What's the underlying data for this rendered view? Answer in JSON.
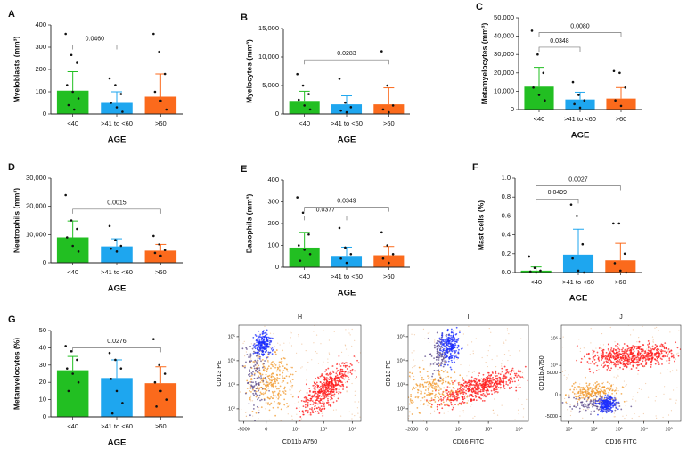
{
  "chart_data": [
    {
      "type": "bar",
      "panel": "A",
      "ylabel": "Myeloblasts (mm³)",
      "xlabel": "AGE",
      "categories": [
        "<40",
        ">41 to <60",
        ">60"
      ],
      "colors": [
        "#22bf22",
        "#1ea6ef",
        "#fb6a1c"
      ],
      "values": [
        105,
        50,
        78
      ],
      "errors": [
        85,
        50,
        102
      ],
      "points": [
        [
          360,
          265,
          230,
          130,
          100,
          70,
          40,
          20
        ],
        [
          160,
          130,
          90,
          50,
          30,
          10
        ],
        [
          360,
          280,
          180,
          100,
          60,
          20
        ]
      ],
      "ylim": [
        0,
        400
      ],
      "yticks": [
        0,
        100,
        200,
        300,
        400
      ],
      "comparisons": [
        {
          "from": 0,
          "to": 1,
          "y": 310,
          "label": "0.0460"
        }
      ]
    },
    {
      "type": "bar",
      "panel": "B",
      "ylabel": "Myelocytes (mm³)",
      "xlabel": "AGE",
      "categories": [
        "<40",
        ">41 to <60",
        ">60"
      ],
      "colors": [
        "#22bf22",
        "#1ea6ef",
        "#fb6a1c"
      ],
      "values": [
        2300,
        1700,
        1700
      ],
      "errors": [
        1700,
        1500,
        2900
      ],
      "points": [
        [
          7000,
          5000,
          3500,
          2500,
          1500,
          800
        ],
        [
          6200,
          2000,
          1200,
          600,
          300
        ],
        [
          11000,
          5000,
          1500,
          800,
          300
        ]
      ],
      "ylim": [
        0,
        15000
      ],
      "yticks": [
        0,
        {
          "value": 5000,
          "label": "5,000"
        },
        {
          "value": 10000,
          "label": "10,000"
        },
        {
          "value": 15000,
          "label": "15,000"
        }
      ],
      "comparisons": [
        {
          "from": 0,
          "to": 2,
          "y": 9500,
          "label": "0.0283"
        }
      ]
    },
    {
      "type": "bar",
      "panel": "C",
      "ylabel": "Metamyelocytes (mm³)",
      "xlabel": "AGE",
      "categories": [
        "<40",
        ">41 to <60",
        ">60"
      ],
      "colors": [
        "#22bf22",
        "#1ea6ef",
        "#fb6a1c"
      ],
      "values": [
        12500,
        5500,
        6000
      ],
      "errors": [
        10500,
        4000,
        6000
      ],
      "points": [
        [
          43000,
          30000,
          20000,
          12000,
          8000,
          5000
        ],
        [
          15000,
          8000,
          5000,
          3000,
          1000
        ],
        [
          21000,
          20000,
          12000,
          5000,
          2000
        ]
      ],
      "ylim": [
        0,
        50000
      ],
      "yticks": [
        0,
        {
          "value": 10000,
          "label": "10,000"
        },
        {
          "value": 20000,
          "label": "20,000"
        },
        {
          "value": 30000,
          "label": "30,000"
        },
        {
          "value": 40000,
          "label": "40,000"
        },
        {
          "value": 50000,
          "label": "50,000"
        }
      ],
      "comparisons": [
        {
          "from": 0,
          "to": 1,
          "y": 34000,
          "label": "0.0348"
        },
        {
          "from": 0,
          "to": 2,
          "y": 42000,
          "label": "0.0080"
        }
      ]
    },
    {
      "type": "bar",
      "panel": "D",
      "ylabel": "Neutrophils (mm³)",
      "xlabel": "AGE",
      "categories": [
        "<40",
        ">41 to <60",
        ">60"
      ],
      "colors": [
        "#22bf22",
        "#1ea6ef",
        "#fb6a1c"
      ],
      "values": [
        9000,
        5800,
        4300
      ],
      "errors": [
        5800,
        2700,
        2200
      ],
      "points": [
        [
          24000,
          15000,
          12000,
          9000,
          6000,
          4000
        ],
        [
          13000,
          8000,
          6000,
          5000,
          4000
        ],
        [
          9500,
          6500,
          4500,
          3500,
          2500
        ]
      ],
      "ylim": [
        0,
        30000
      ],
      "yticks": [
        0,
        {
          "value": 10000,
          "label": "10,000"
        },
        {
          "value": 20000,
          "label": "20,000"
        },
        {
          "value": 30000,
          "label": "30,000"
        }
      ],
      "comparisons": [
        {
          "from": 0,
          "to": 2,
          "y": 19000,
          "label": "0.0015"
        }
      ]
    },
    {
      "type": "bar",
      "panel": "E",
      "ylabel": "Basophils (mm³)",
      "xlabel": "AGE",
      "categories": [
        "<40",
        ">41 to <60",
        ">60"
      ],
      "colors": [
        "#22bf22",
        "#1ea6ef",
        "#fb6a1c"
      ],
      "values": [
        90,
        52,
        55
      ],
      "errors": [
        70,
        40,
        40
      ],
      "points": [
        [
          320,
          250,
          150,
          100,
          80,
          60,
          30
        ],
        [
          180,
          90,
          60,
          40,
          20
        ],
        [
          160,
          100,
          60,
          40,
          20
        ]
      ],
      "ylim": [
        0,
        400
      ],
      "yticks": [
        0,
        100,
        200,
        300,
        400
      ],
      "comparisons": [
        {
          "from": 0,
          "to": 1,
          "y": 235,
          "label": "0.0377"
        },
        {
          "from": 0,
          "to": 2,
          "y": 275,
          "label": "0.0349"
        }
      ]
    },
    {
      "type": "bar",
      "panel": "F",
      "ylabel": "Mast cells (%)",
      "xlabel": "AGE",
      "categories": [
        "<40",
        ">41 to <60",
        ">60"
      ],
      "colors": [
        "#22bf22",
        "#1ea6ef",
        "#fb6a1c"
      ],
      "values": [
        0.02,
        0.19,
        0.13
      ],
      "errors": [
        0.04,
        0.27,
        0.18
      ],
      "points": [
        [
          0.17,
          0.05,
          0.02,
          0.01,
          0
        ],
        [
          0.72,
          0.6,
          0.3,
          0.15,
          0.02,
          0
        ],
        [
          0.52,
          0.52,
          0.2,
          0.1,
          0.02,
          0
        ]
      ],
      "ylim": [
        0,
        1
      ],
      "yticks": [
        {
          "value": 0,
          "label": "0.0"
        },
        0.2,
        0.4,
        0.6,
        0.8,
        {
          "value": 1,
          "label": "1.0"
        }
      ],
      "comparisons": [
        {
          "from": 0,
          "to": 1,
          "y": 0.78,
          "label": "0.0499"
        },
        {
          "from": 0,
          "to": 2,
          "y": 0.92,
          "label": "0.0027"
        }
      ]
    },
    {
      "type": "bar",
      "panel": "G",
      "ylabel": "Metamyelocytes (%)",
      "xlabel": "AGE",
      "categories": [
        "<40",
        ">41 to <60",
        ">60"
      ],
      "colors": [
        "#22bf22",
        "#1ea6ef",
        "#fb6a1c"
      ],
      "values": [
        27,
        22.5,
        19.5
      ],
      "errors": [
        8,
        10.5,
        9.5
      ],
      "points": [
        [
          41,
          38,
          33,
          28,
          25,
          20,
          15
        ],
        [
          37,
          33,
          28,
          22,
          15,
          8,
          2
        ],
        [
          45,
          30,
          25,
          20,
          15,
          10,
          6
        ]
      ],
      "ylim": [
        0,
        50
      ],
      "yticks": [
        0,
        10,
        20,
        30,
        40,
        50
      ],
      "comparisons": [
        {
          "from": 0,
          "to": 2,
          "y": 40,
          "label": "0.0276"
        }
      ]
    },
    {
      "type": "flow",
      "panel": "H",
      "xlabel": "CD11b A750",
      "ylabel": "CD13 PE",
      "xscale": "symlog",
      "yscale": "log",
      "xlim": [
        -8000,
        2000000
      ],
      "ylim": [
        30,
        300000
      ],
      "xticks": [
        -5000,
        0,
        {
          "value": 10000,
          "label": "10⁴"
        },
        {
          "value": 100000,
          "label": "10⁵"
        },
        {
          "value": 1000000,
          "label": "10⁶"
        }
      ],
      "yticks": [
        {
          "value": 100,
          "label": "10²"
        },
        {
          "value": 1000,
          "label": "10³"
        },
        {
          "value": 10000,
          "label": "10⁴"
        },
        {
          "value": 100000,
          "label": "10⁵"
        }
      ]
    },
    {
      "type": "flow",
      "panel": "I",
      "xlabel": "CD16 FITC",
      "ylabel": "CD13 PE",
      "xscale": "symlog",
      "yscale": "log",
      "xlim": [
        -3000,
        2000000
      ],
      "ylim": [
        30,
        300000
      ],
      "xticks": [
        -2000,
        0,
        {
          "value": 10000,
          "label": "10⁴"
        },
        {
          "value": 100000,
          "label": "10⁵"
        },
        {
          "value": 1000000,
          "label": "10⁶"
        }
      ],
      "yticks": [
        {
          "value": 100,
          "label": "10²"
        },
        {
          "value": 1000,
          "label": "10³"
        },
        {
          "value": 10000,
          "label": "10⁴"
        },
        {
          "value": 100000,
          "label": "10⁵"
        }
      ]
    },
    {
      "type": "flow",
      "panel": "J",
      "xlabel": "CD16 FITC",
      "ylabel": "CD11b A750",
      "xscale": "log",
      "yscale": "symlog",
      "xlim": [
        5,
        300000
      ],
      "ylim": [
        -8000,
        300000
      ],
      "xticks": [
        {
          "value": 10,
          "label": "10¹"
        },
        {
          "value": 100,
          "label": "10²"
        },
        {
          "value": 1000,
          "label": "10³"
        },
        {
          "value": 10000,
          "label": "10⁴"
        },
        {
          "value": 100000,
          "label": "10⁵"
        }
      ],
      "yticks": [
        -5000,
        0,
        5000,
        {
          "value": 10000,
          "label": "10⁴"
        },
        {
          "value": 100000,
          "label": "10⁵"
        }
      ]
    }
  ]
}
